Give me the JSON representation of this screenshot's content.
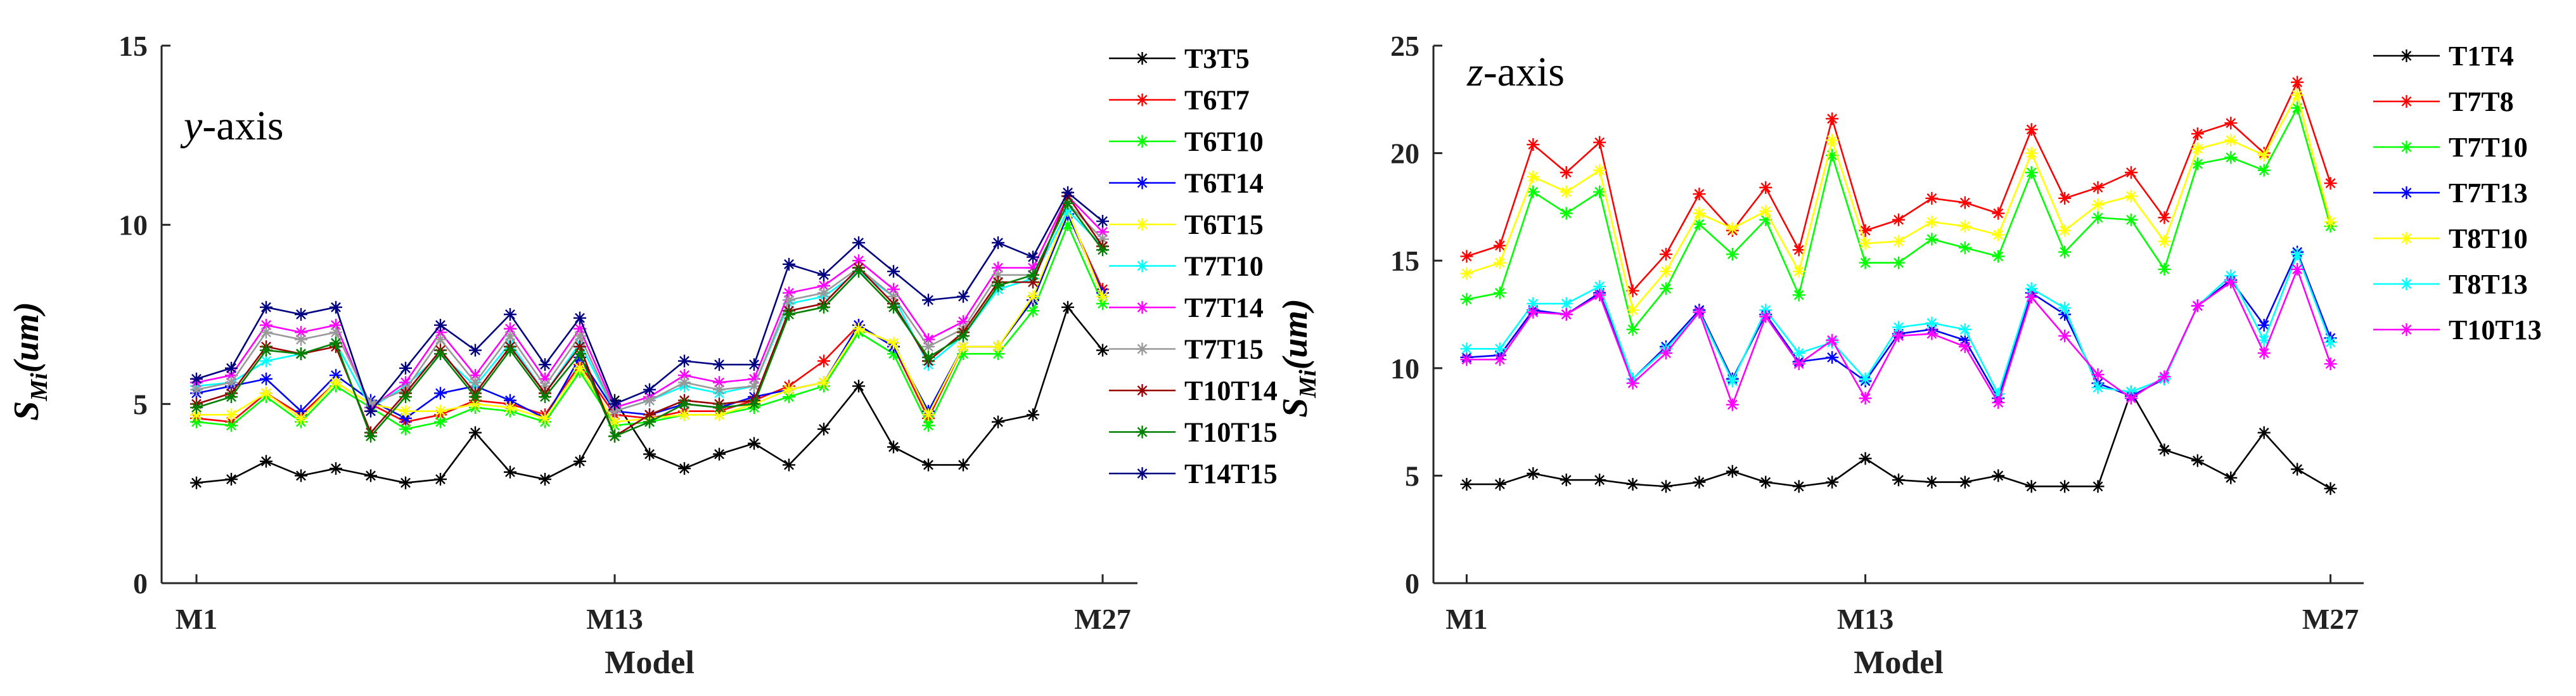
{
  "chart_data": [
    {
      "type": "line",
      "annotation": {
        "italic": "y",
        "text": "-axis"
      },
      "ylabel": {
        "main": "S",
        "sub": "Mi",
        "unit": "(um)"
      },
      "xlabel": "Model",
      "x_ticks": [
        {
          "x": 1,
          "label": "M1"
        },
        {
          "x": 13,
          "label": "M13"
        },
        {
          "x": 27,
          "label": "M27"
        }
      ],
      "xlim": [
        0,
        28
      ],
      "ylim": [
        0,
        15
      ],
      "y_ticks": [
        {
          "v": 0,
          "label": "0"
        },
        {
          "v": 5,
          "label": "5"
        },
        {
          "v": 10,
          "label": "10"
        },
        {
          "v": 15,
          "label": "15"
        }
      ],
      "legend_position": "right",
      "series": [
        {
          "name": "T3T5",
          "color": "#000000",
          "values": [
            2.8,
            2.9,
            3.4,
            3.0,
            3.2,
            3.0,
            2.8,
            2.9,
            4.2,
            3.1,
            2.9,
            3.4,
            5.1,
            3.6,
            3.2,
            3.6,
            3.9,
            3.3,
            4.3,
            5.5,
            3.8,
            3.3,
            3.3,
            4.5,
            4.7,
            7.7,
            6.5
          ]
        },
        {
          "name": "T6T7",
          "color": "#ff0000",
          "values": [
            4.6,
            4.5,
            5.3,
            4.7,
            5.6,
            5.0,
            4.5,
            4.7,
            5.1,
            5.0,
            4.7,
            6.1,
            4.7,
            4.6,
            4.8,
            4.8,
            5.1,
            5.5,
            6.2,
            7.2,
            6.6,
            4.6,
            6.6,
            6.6,
            7.9,
            10.3,
            8.2
          ]
        },
        {
          "name": "T6T10",
          "color": "#00ff00",
          "values": [
            4.5,
            4.4,
            5.2,
            4.5,
            5.5,
            4.9,
            4.3,
            4.5,
            4.9,
            4.8,
            4.5,
            5.9,
            4.4,
            4.5,
            4.7,
            4.7,
            4.9,
            5.2,
            5.5,
            7.0,
            6.4,
            4.4,
            6.4,
            6.4,
            7.6,
            10.0,
            7.8
          ]
        },
        {
          "name": "T6T14",
          "color": "#0000ff",
          "values": [
            5.3,
            5.5,
            5.7,
            4.8,
            5.8,
            5.1,
            4.6,
            5.3,
            5.5,
            5.1,
            4.6,
            6.3,
            4.8,
            4.7,
            5.0,
            4.9,
            5.2,
            5.4,
            5.6,
            7.2,
            6.6,
            4.8,
            6.6,
            6.6,
            7.9,
            10.3,
            8.1
          ]
        },
        {
          "name": "T6T15",
          "color": "#ffff00",
          "values": [
            4.7,
            4.7,
            5.3,
            4.6,
            5.6,
            5.0,
            4.8,
            4.8,
            5.0,
            4.9,
            4.6,
            6.0,
            4.5,
            4.6,
            4.7,
            4.7,
            5.0,
            5.4,
            5.6,
            7.1,
            6.7,
            4.7,
            6.6,
            6.6,
            8.0,
            10.4,
            8.0
          ]
        },
        {
          "name": "T7T10",
          "color": "#00ffff",
          "values": [
            5.5,
            5.6,
            6.2,
            6.4,
            6.7,
            4.9,
            5.5,
            6.4,
            5.5,
            6.7,
            5.3,
            6.7,
            4.8,
            5.1,
            5.5,
            5.3,
            5.5,
            7.8,
            8.0,
            8.7,
            8.0,
            6.1,
            6.9,
            8.2,
            8.5,
            10.4,
            9.4
          ]
        },
        {
          "name": "T7T14",
          "color": "#ff00ff",
          "values": [
            5.6,
            5.8,
            7.2,
            7.0,
            7.2,
            4.9,
            5.6,
            7.0,
            5.8,
            7.1,
            5.7,
            7.1,
            4.9,
            5.2,
            5.8,
            5.6,
            5.7,
            8.1,
            8.3,
            9.0,
            8.2,
            6.8,
            7.3,
            8.8,
            8.8,
            10.8,
            9.8
          ]
        },
        {
          "name": "T7T15",
          "color": "#999999",
          "values": [
            5.4,
            5.6,
            7.0,
            6.8,
            7.0,
            5.0,
            5.4,
            6.8,
            5.6,
            6.9,
            5.5,
            6.9,
            4.8,
            5.1,
            5.6,
            5.4,
            5.5,
            7.9,
            8.1,
            8.8,
            8.0,
            6.6,
            7.1,
            8.6,
            8.6,
            10.6,
            9.6
          ]
        },
        {
          "name": "T10T14",
          "color": "#990000",
          "values": [
            5.0,
            5.3,
            6.6,
            6.4,
            6.6,
            4.2,
            5.3,
            6.5,
            5.3,
            6.6,
            5.3,
            6.6,
            4.1,
            4.7,
            5.1,
            5.0,
            5.1,
            7.6,
            7.8,
            8.8,
            7.8,
            6.2,
            7.0,
            8.4,
            8.4,
            10.8,
            9.4
          ]
        },
        {
          "name": "T10T15",
          "color": "#008000",
          "values": [
            4.9,
            5.2,
            6.5,
            6.4,
            6.7,
            4.1,
            5.2,
            6.4,
            5.2,
            6.5,
            5.2,
            6.4,
            4.1,
            4.5,
            5.0,
            4.9,
            5.0,
            7.5,
            7.7,
            8.7,
            7.7,
            6.3,
            6.9,
            8.3,
            8.6,
            10.6,
            9.3
          ]
        },
        {
          "name": "T14T15",
          "color": "#000080",
          "values": [
            5.7,
            6.0,
            7.7,
            7.5,
            7.7,
            4.8,
            6.0,
            7.2,
            6.5,
            7.5,
            6.1,
            7.4,
            5.0,
            5.4,
            6.2,
            6.1,
            6.1,
            8.9,
            8.6,
            9.5,
            8.7,
            7.9,
            8.0,
            9.5,
            9.1,
            10.9,
            10.1
          ]
        }
      ]
    },
    {
      "type": "line",
      "annotation": {
        "italic": "z",
        "text": "-axis"
      },
      "ylabel": {
        "main": "S",
        "sub": "Mi",
        "unit": "(um)"
      },
      "xlabel": "Model",
      "x_ticks": [
        {
          "x": 1,
          "label": "M1"
        },
        {
          "x": 13,
          "label": "M13"
        },
        {
          "x": 27,
          "label": "M27"
        }
      ],
      "xlim": [
        0,
        28
      ],
      "ylim": [
        0,
        25
      ],
      "y_ticks": [
        {
          "v": 0,
          "label": "0"
        },
        {
          "v": 5,
          "label": "5"
        },
        {
          "v": 10,
          "label": "10"
        },
        {
          "v": 15,
          "label": "15"
        },
        {
          "v": 20,
          "label": "20"
        },
        {
          "v": 25,
          "label": "25"
        }
      ],
      "legend_position": "right",
      "series": [
        {
          "name": "T1T4",
          "color": "#000000",
          "values": [
            4.6,
            4.6,
            5.1,
            4.8,
            4.8,
            4.6,
            4.5,
            4.7,
            5.2,
            4.7,
            4.5,
            4.7,
            5.8,
            4.8,
            4.7,
            4.7,
            5.0,
            4.5,
            4.5,
            4.5,
            8.9,
            6.2,
            5.7,
            4.9,
            7.0,
            5.3,
            4.4
          ]
        },
        {
          "name": "T7T8",
          "color": "#ff0000",
          "values": [
            15.2,
            15.7,
            20.4,
            19.1,
            20.5,
            13.6,
            15.3,
            18.1,
            16.4,
            18.4,
            15.5,
            21.6,
            16.4,
            16.9,
            17.9,
            17.7,
            17.2,
            21.1,
            17.9,
            18.4,
            19.1,
            17.0,
            20.9,
            21.4,
            20.0,
            23.3,
            18.6
          ]
        },
        {
          "name": "T7T10",
          "color": "#00ff00",
          "values": [
            13.2,
            13.5,
            18.2,
            17.2,
            18.2,
            11.8,
            13.7,
            16.7,
            15.3,
            16.9,
            13.4,
            19.9,
            14.9,
            14.9,
            16.0,
            15.6,
            15.2,
            19.1,
            15.4,
            17.0,
            16.9,
            14.6,
            19.5,
            19.8,
            19.2,
            22.1,
            16.6
          ]
        },
        {
          "name": "T7T13",
          "color": "#0000ff",
          "values": [
            10.5,
            10.6,
            12.7,
            12.5,
            13.5,
            9.5,
            11.0,
            12.7,
            9.5,
            12.5,
            10.3,
            10.5,
            9.4,
            11.6,
            11.8,
            11.3,
            8.6,
            13.5,
            12.5,
            9.3,
            8.7,
            9.5,
            12.9,
            14.1,
            12.0,
            15.4,
            11.4
          ]
        },
        {
          "name": "T8T10",
          "color": "#ffff00",
          "values": [
            14.4,
            14.9,
            18.9,
            18.2,
            19.2,
            12.7,
            14.5,
            17.2,
            16.5,
            17.3,
            14.5,
            20.6,
            15.8,
            15.9,
            16.8,
            16.6,
            16.2,
            20.0,
            16.4,
            17.6,
            18.0,
            15.9,
            20.2,
            20.6,
            19.9,
            22.7,
            16.8
          ]
        },
        {
          "name": "T8T13",
          "color": "#00ffff",
          "values": [
            10.9,
            10.9,
            13.0,
            13.0,
            13.8,
            9.5,
            10.9,
            12.6,
            9.4,
            12.7,
            10.7,
            11.2,
            9.5,
            11.9,
            12.1,
            11.8,
            8.8,
            13.7,
            12.8,
            9.1,
            8.9,
            9.5,
            12.9,
            14.3,
            11.3,
            15.3,
            11.2
          ]
        },
        {
          "name": "T10T13",
          "color": "#ff00ff",
          "values": [
            10.4,
            10.4,
            12.6,
            12.5,
            13.4,
            9.3,
            10.7,
            12.6,
            8.3,
            12.4,
            10.2,
            11.3,
            8.6,
            11.5,
            11.6,
            11.0,
            8.4,
            13.3,
            11.5,
            9.7,
            8.6,
            9.6,
            12.9,
            14.0,
            10.7,
            14.6,
            10.2
          ]
        }
      ]
    }
  ]
}
